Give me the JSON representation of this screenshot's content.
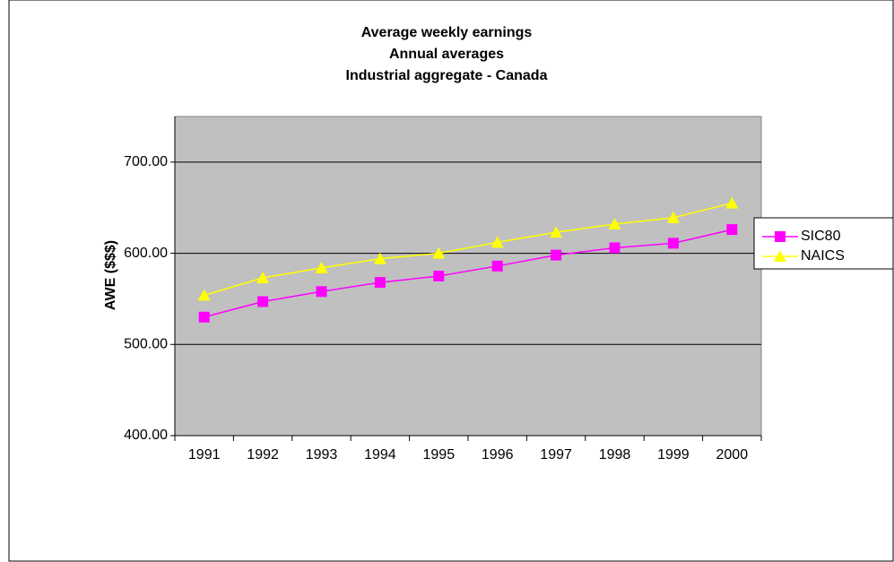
{
  "chart_data": {
    "type": "line",
    "title": "Average weekly earnings",
    "subtitle": [
      "Annual averages",
      "Industrial aggregate - Canada"
    ],
    "y_label": "AWE ($$$)",
    "categories": [
      "1991",
      "1992",
      "1993",
      "1994",
      "1995",
      "1996",
      "1997",
      "1998",
      "1999",
      "2000"
    ],
    "series": [
      {
        "name": "SIC80",
        "color": "#ff00ff",
        "marker": "square",
        "values": [
          530,
          547,
          558,
          568,
          575,
          586,
          598,
          606,
          611,
          626
        ]
      },
      {
        "name": "NAICS",
        "color": "#ffff00",
        "marker": "triangle",
        "values": [
          554,
          573,
          584,
          594,
          600,
          612,
          623,
          632,
          639,
          655
        ]
      }
    ],
    "ylim": [
      400,
      750
    ],
    "yticks": [
      {
        "value": 400,
        "label": "400.00"
      },
      {
        "value": 500,
        "label": "500.00"
      },
      {
        "value": 600,
        "label": "600.00"
      },
      {
        "value": 700,
        "label": "700.00"
      }
    ],
    "grid": true,
    "legend": "right"
  }
}
